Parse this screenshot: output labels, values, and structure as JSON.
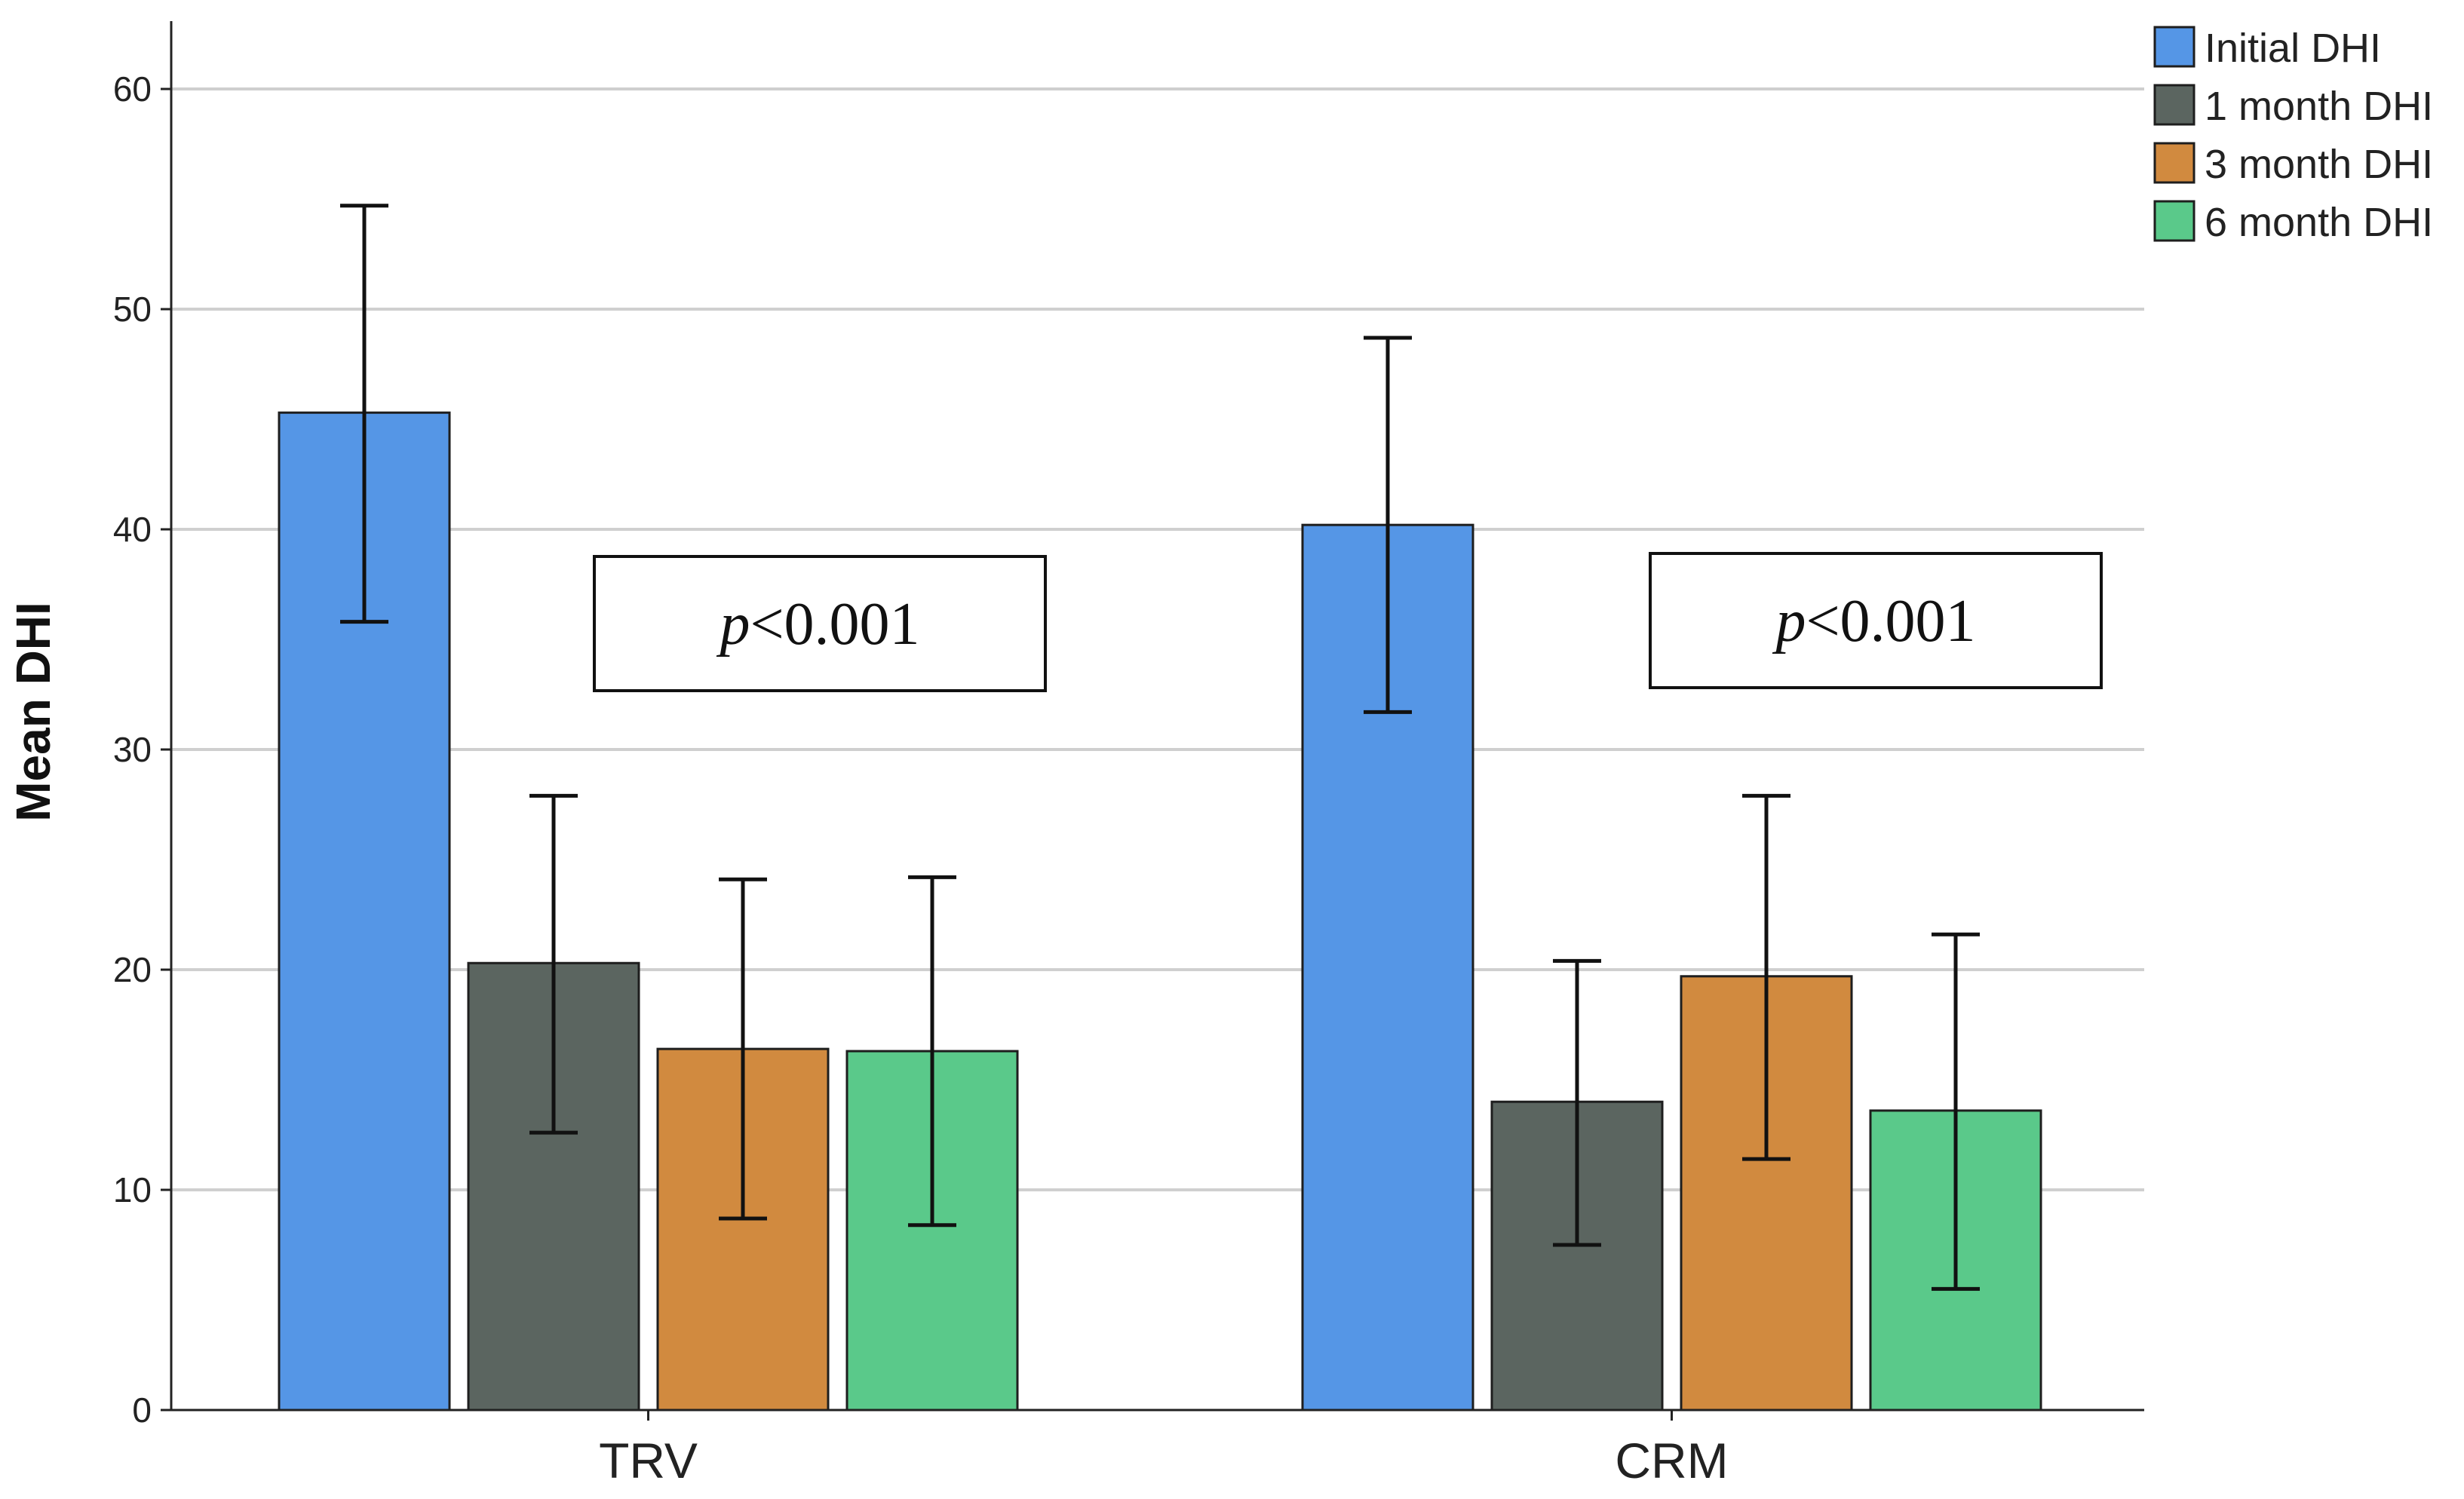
{
  "chart_data": {
    "type": "bar",
    "title": "",
    "xlabel": "",
    "ylabel": "Mean DHI",
    "ylim": [
      0,
      60
    ],
    "yticks": [
      0,
      10,
      20,
      30,
      40,
      50,
      60
    ],
    "grid": true,
    "legend_position": "top-right",
    "categories": [
      "TRV",
      "CRM"
    ],
    "series": [
      {
        "name": "Initial DHI",
        "color": "#5596e6",
        "values": [
          45.3,
          40.2
        ],
        "error_low": [
          35.8,
          31.7
        ],
        "error_high": [
          54.7,
          48.7
        ]
      },
      {
        "name": "1 month DHI",
        "color": "#5b6560",
        "values": [
          20.3,
          14.0
        ],
        "error_low": [
          12.6,
          7.5
        ],
        "error_high": [
          27.9,
          20.4
        ]
      },
      {
        "name": "3 month DHI",
        "color": "#d18a3f",
        "values": [
          16.4,
          19.7
        ],
        "error_low": [
          8.7,
          11.4
        ],
        "error_high": [
          24.1,
          27.9
        ]
      },
      {
        "name": "6 month DHI",
        "color": "#5ac98a",
        "values": [
          16.3,
          13.6
        ],
        "error_low": [
          8.4,
          5.5
        ],
        "error_high": [
          24.2,
          21.6
        ]
      }
    ],
    "annotations": [
      {
        "category": "TRV",
        "p_symbol": "p",
        "p_rest": "<0.001"
      },
      {
        "category": "CRM",
        "p_symbol": "p",
        "p_rest": "<0.001"
      }
    ]
  }
}
